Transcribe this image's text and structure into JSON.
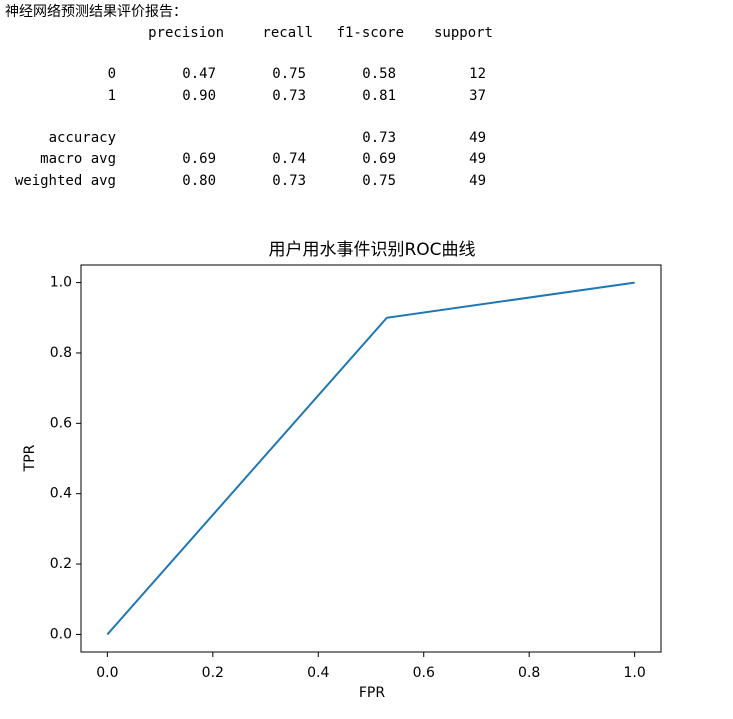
{
  "report": {
    "title": "神经网络预测结果评价报告：",
    "columns": [
      "precision",
      "recall",
      "f1-score",
      "support"
    ],
    "rows": [
      {
        "label": "0",
        "precision": "0.47",
        "recall": "0.75",
        "f1-score": "0.58",
        "support": "12"
      },
      {
        "label": "1",
        "precision": "0.90",
        "recall": "0.73",
        "f1-score": "0.81",
        "support": "37"
      },
      {
        "label": "accuracy",
        "f1-score": "0.73",
        "support": "49"
      },
      {
        "label": "macro avg",
        "precision": "0.69",
        "recall": "0.74",
        "f1-score": "0.69",
        "support": "49"
      },
      {
        "label": "weighted avg",
        "precision": "0.80",
        "recall": "0.73",
        "f1-score": "0.75",
        "support": "49"
      }
    ]
  },
  "chart_data": {
    "type": "line",
    "title": "用户用水事件识别ROC曲线",
    "x_label": "FPR",
    "y_label": "TPR",
    "x": [
      0,
      0.53,
      1
    ],
    "series": [
      {
        "color": "#1f77b4",
        "values": [
          0,
          0.9,
          1
        ]
      }
    ],
    "xlim": [
      -0.05,
      1.05
    ],
    "ylim": [
      -0.05,
      1.05
    ],
    "xticks": [
      {
        "value": 0,
        "label": "0.0"
      },
      0.2,
      0.4,
      0.6,
      0.8,
      {
        "value": 1,
        "label": "1.0"
      }
    ],
    "yticks": [
      {
        "value": 0,
        "label": "0.0"
      },
      0.2,
      0.4,
      0.6,
      0.8,
      {
        "value": 1,
        "label": "1.0"
      }
    ],
    "grid": false
  }
}
